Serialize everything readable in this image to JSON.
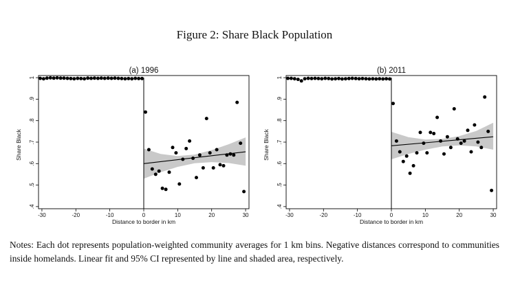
{
  "figure": {
    "title": "Figure 2: Share Black Population",
    "notes": "Notes: Each dot represents population-weighted community averages for 1 km bins. Negative distances correspond to communities inside homelands. Linear fit and 95% CI represented by line and shaded area, respectively."
  },
  "chart_data": [
    {
      "type": "scatter",
      "title": "(a) 1996",
      "xlabel": "Distance to border in km",
      "ylabel": "Share Black",
      "xlim": [
        -31,
        31
      ],
      "ylim": [
        0.39,
        1.01
      ],
      "xticks": [
        -30,
        -20,
        -10,
        0,
        10,
        20,
        30
      ],
      "yticks": [
        0.4,
        0.5,
        0.6,
        0.7,
        0.8,
        0.9,
        1
      ],
      "ytick_labels": [
        ".4",
        ".5",
        ".6",
        ".7",
        ".8",
        ".9",
        "1"
      ],
      "xtick_labels": [
        "-30",
        "-20",
        "-10",
        "0",
        "10",
        "20",
        "30"
      ],
      "vertical_line_at": 0,
      "points": [
        [
          -30.5,
          0.997
        ],
        [
          -29.5,
          0.995
        ],
        [
          -28.5,
          0.998
        ],
        [
          -27.5,
          0.999
        ],
        [
          -26.5,
          0.998
        ],
        [
          -25.5,
          0.999
        ],
        [
          -24.5,
          0.998
        ],
        [
          -23.5,
          0.998
        ],
        [
          -22.5,
          0.997
        ],
        [
          -21.5,
          0.996
        ],
        [
          -20.5,
          0.995
        ],
        [
          -19.5,
          0.997
        ],
        [
          -18.5,
          0.996
        ],
        [
          -17.5,
          0.995
        ],
        [
          -16.5,
          0.998
        ],
        [
          -15.5,
          0.997
        ],
        [
          -14.5,
          0.998
        ],
        [
          -13.5,
          0.997
        ],
        [
          -12.5,
          0.998
        ],
        [
          -11.5,
          0.997
        ],
        [
          -10.5,
          0.998
        ],
        [
          -9.5,
          0.997
        ],
        [
          -8.5,
          0.998
        ],
        [
          -7.5,
          0.997
        ],
        [
          -6.5,
          0.996
        ],
        [
          -5.5,
          0.995
        ],
        [
          -4.5,
          0.996
        ],
        [
          -3.5,
          0.995
        ],
        [
          -2.5,
          0.997
        ],
        [
          -1.5,
          0.996
        ],
        [
          -0.5,
          0.996
        ],
        [
          0.5,
          0.84
        ],
        [
          1.5,
          0.665
        ],
        [
          2.5,
          0.575
        ],
        [
          3.5,
          0.55
        ],
        [
          4.5,
          0.565
        ],
        [
          5.5,
          0.485
        ],
        [
          6.5,
          0.48
        ],
        [
          7.5,
          0.56
        ],
        [
          8.5,
          0.675
        ],
        [
          9.5,
          0.65
        ],
        [
          10.5,
          0.505
        ],
        [
          11.5,
          0.62
        ],
        [
          12.5,
          0.67
        ],
        [
          13.5,
          0.705
        ],
        [
          14.5,
          0.625
        ],
        [
          15.5,
          0.535
        ],
        [
          16.5,
          0.64
        ],
        [
          17.5,
          0.58
        ],
        [
          18.5,
          0.81
        ],
        [
          19.5,
          0.65
        ],
        [
          20.5,
          0.58
        ],
        [
          21.5,
          0.665
        ],
        [
          22.5,
          0.595
        ],
        [
          23.5,
          0.59
        ],
        [
          24.5,
          0.64
        ],
        [
          25.5,
          0.645
        ],
        [
          26.5,
          0.64
        ],
        [
          27.5,
          0.885
        ],
        [
          28.5,
          0.695
        ],
        [
          29.5,
          0.47
        ]
      ],
      "fit": {
        "x": [
          0,
          30
        ],
        "y": [
          0.6,
          0.655
        ]
      },
      "ci_band": {
        "x": [
          0,
          5,
          10,
          15,
          20,
          25,
          30
        ],
        "lower": [
          0.53,
          0.56,
          0.585,
          0.602,
          0.607,
          0.603,
          0.59
        ],
        "upper": [
          0.67,
          0.645,
          0.635,
          0.642,
          0.663,
          0.69,
          0.722
        ]
      }
    },
    {
      "type": "scatter",
      "title": "(b) 2011",
      "xlabel": "Distance to border in km",
      "ylabel": "Share Black",
      "xlim": [
        -31,
        31
      ],
      "ylim": [
        0.39,
        1.01
      ],
      "xticks": [
        -30,
        -20,
        -10,
        0,
        10,
        20,
        30
      ],
      "yticks": [
        0.4,
        0.5,
        0.6,
        0.7,
        0.8,
        0.9,
        1
      ],
      "ytick_labels": [
        ".4",
        ".5",
        ".6",
        ".7",
        ".8",
        ".9",
        "1"
      ],
      "xtick_labels": [
        "-30",
        "-20",
        "-10",
        "0",
        "10",
        "20",
        "30"
      ],
      "vertical_line_at": 0,
      "points": [
        [
          -30.5,
          0.997
        ],
        [
          -29.5,
          0.997
        ],
        [
          -28.5,
          0.995
        ],
        [
          -27.5,
          0.992
        ],
        [
          -26.5,
          0.985
        ],
        [
          -25.5,
          0.995
        ],
        [
          -24.5,
          0.997
        ],
        [
          -23.5,
          0.996
        ],
        [
          -22.5,
          0.997
        ],
        [
          -21.5,
          0.996
        ],
        [
          -20.5,
          0.995
        ],
        [
          -19.5,
          0.997
        ],
        [
          -18.5,
          0.996
        ],
        [
          -17.5,
          0.994
        ],
        [
          -16.5,
          0.995
        ],
        [
          -15.5,
          0.996
        ],
        [
          -14.5,
          0.994
        ],
        [
          -13.5,
          0.995
        ],
        [
          -12.5,
          0.996
        ],
        [
          -11.5,
          0.997
        ],
        [
          -10.5,
          0.996
        ],
        [
          -9.5,
          0.995
        ],
        [
          -8.5,
          0.996
        ],
        [
          -7.5,
          0.995
        ],
        [
          -6.5,
          0.994
        ],
        [
          -5.5,
          0.995
        ],
        [
          -4.5,
          0.994
        ],
        [
          -3.5,
          0.995
        ],
        [
          -2.5,
          0.994
        ],
        [
          -1.5,
          0.995
        ],
        [
          -0.5,
          0.994
        ],
        [
          0.5,
          0.88
        ],
        [
          1.5,
          0.705
        ],
        [
          2.5,
          0.655
        ],
        [
          3.5,
          0.61
        ],
        [
          4.5,
          0.635
        ],
        [
          5.5,
          0.555
        ],
        [
          6.5,
          0.59
        ],
        [
          7.5,
          0.65
        ],
        [
          8.5,
          0.745
        ],
        [
          9.5,
          0.695
        ],
        [
          10.5,
          0.65
        ],
        [
          11.5,
          0.745
        ],
        [
          12.5,
          0.74
        ],
        [
          13.5,
          0.815
        ],
        [
          14.5,
          0.705
        ],
        [
          15.5,
          0.645
        ],
        [
          16.5,
          0.725
        ],
        [
          17.5,
          0.675
        ],
        [
          18.5,
          0.855
        ],
        [
          19.5,
          0.715
        ],
        [
          20.5,
          0.695
        ],
        [
          21.5,
          0.705
        ],
        [
          22.5,
          0.755
        ],
        [
          23.5,
          0.655
        ],
        [
          24.5,
          0.78
        ],
        [
          25.5,
          0.7
        ],
        [
          26.5,
          0.675
        ],
        [
          27.5,
          0.91
        ],
        [
          28.5,
          0.75
        ],
        [
          29.5,
          0.475
        ]
      ],
      "fit": {
        "x": [
          0,
          30
        ],
        "y": [
          0.683,
          0.725
        ]
      },
      "ci_band": {
        "x": [
          0,
          5,
          10,
          15,
          20,
          25,
          30
        ],
        "lower": [
          0.62,
          0.645,
          0.665,
          0.68,
          0.685,
          0.68,
          0.665
        ],
        "upper": [
          0.748,
          0.723,
          0.712,
          0.715,
          0.728,
          0.752,
          0.79
        ]
      }
    }
  ]
}
